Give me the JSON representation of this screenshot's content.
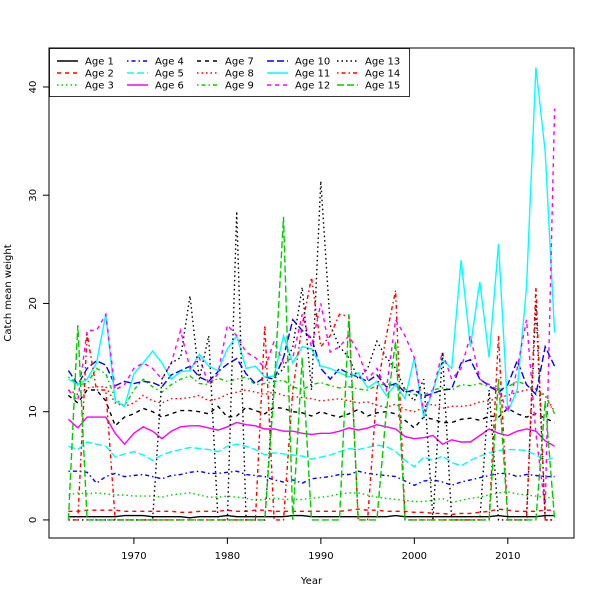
{
  "chart_data": {
    "type": "line",
    "title": "",
    "xlabel": "Year",
    "ylabel": "Catch mean weight",
    "xlim": [
      1960.92,
      2017.08
    ],
    "ylim": [
      -1.67,
      43.6
    ],
    "x_ticks": [
      1970,
      1980,
      1990,
      2000,
      2010
    ],
    "x_tick_labels": [
      "1970",
      "1980",
      "1990",
      "2000",
      "2010"
    ],
    "y_ticks": [
      0,
      10,
      20,
      30,
      40
    ],
    "y_tick_labels": [
      "0",
      "10",
      "20",
      "30",
      "40"
    ],
    "grid": false,
    "legend_position": "top-left",
    "x_start": 1963,
    "series": [
      {
        "name": "Age 1",
        "color": "#000000",
        "linestyle": "solid",
        "values": [
          0.3,
          0.3,
          0.3,
          0.3,
          0.3,
          0.3,
          0.4,
          0.4,
          0.4,
          0.3,
          0.3,
          0.3,
          0.3,
          0.2,
          0.3,
          0.3,
          0.3,
          0.4,
          0.3,
          0.3,
          0.3,
          0.3,
          0.3,
          0.3,
          0.4,
          0.4,
          0.3,
          0.3,
          0.3,
          0.3,
          0.3,
          0.3,
          0.3,
          0.3,
          0.3,
          0.4,
          0.3,
          0.3,
          0.3,
          0.3,
          0.3,
          0.3,
          0.3,
          0.3,
          0.3,
          0.3,
          0.4,
          0.3,
          0.3,
          0.3,
          0.3,
          0.4,
          0.4
        ]
      },
      {
        "name": "Age 2",
        "color": "#FF0000",
        "linestyle": "dashed",
        "values": [
          0.8,
          0.8,
          0.9,
          0.9,
          0.9,
          0.9,
          0.8,
          0.8,
          0.8,
          0.8,
          0.8,
          0.8,
          0.7,
          0.7,
          0.8,
          0.8,
          0.8,
          0.9,
          0.8,
          0.8,
          0.9,
          0.9,
          0.8,
          0.8,
          0.8,
          0.8,
          0.8,
          0.8,
          0.8,
          0.8,
          0.9,
          1.0,
          0.9,
          0.9,
          0.8,
          0.8,
          0.8,
          0.7,
          0.7,
          0.6,
          0.6,
          0.5,
          0.6,
          0.6,
          0.7,
          0.8,
          1.0,
          0.9,
          0.8,
          0.8,
          0.8,
          0.9,
          0.9
        ]
      },
      {
        "name": "Age 3",
        "color": "#00CD00",
        "linestyle": "dotted",
        "values": [
          2.3,
          2.5,
          2.4,
          2.5,
          2.4,
          2.3,
          2.3,
          2.2,
          2.2,
          2.2,
          2.1,
          2.3,
          2.4,
          2.5,
          2.3,
          2.1,
          2.1,
          2.2,
          2.1,
          2.0,
          1.8,
          1.9,
          2.0,
          1.9,
          1.9,
          1.9,
          2.0,
          2.1,
          2.2,
          2.4,
          2.5,
          2.5,
          2.3,
          2.1,
          2.0,
          1.9,
          1.8,
          1.7,
          1.7,
          1.8,
          2.0,
          1.6,
          1.8,
          2.0,
          2.1,
          2.3,
          2.5,
          2.6,
          2.4,
          2.3,
          2.2,
          2.1,
          2.0
        ]
      },
      {
        "name": "Age 4",
        "color": "#0000FF",
        "linestyle": "dotdash",
        "values": [
          4.5,
          4.5,
          4.4,
          3.4,
          4.0,
          4.3,
          4.0,
          4.1,
          4.2,
          4.0,
          3.8,
          4.1,
          4.2,
          4.4,
          4.5,
          4.3,
          4.3,
          4.4,
          4.5,
          4.2,
          4.1,
          4.0,
          3.7,
          3.5,
          3.7,
          3.4,
          3.8,
          3.9,
          4.0,
          4.2,
          4.2,
          4.5,
          4.3,
          4.2,
          4.1,
          4.0,
          3.6,
          3.2,
          3.6,
          3.7,
          3.5,
          3.2,
          3.5,
          3.7,
          3.9,
          4.1,
          4.3,
          4.3,
          4.0,
          4.2,
          4.1,
          4.0,
          4.0
        ]
      },
      {
        "name": "Age 5",
        "color": "#00FFFF",
        "linestyle": "longdash",
        "values": [
          6.8,
          6.5,
          7.2,
          7.0,
          6.8,
          5.8,
          6.1,
          6.3,
          6.0,
          5.5,
          6.0,
          6.3,
          6.5,
          6.7,
          6.6,
          6.5,
          6.3,
          6.8,
          7.0,
          6.8,
          6.5,
          6.0,
          6.2,
          6.1,
          6.0,
          5.9,
          5.6,
          5.8,
          6.0,
          6.3,
          6.6,
          6.5,
          6.7,
          6.9,
          6.8,
          6.3,
          5.5,
          4.9,
          5.8,
          5.5,
          5.9,
          5.3,
          5.0,
          5.5,
          5.9,
          6.2,
          6.4,
          6.5,
          6.5,
          6.4,
          6.0,
          5.5,
          5.8
        ]
      },
      {
        "name": "Age 6",
        "color": "#FF00FF",
        "linestyle": "solid",
        "values": [
          9.3,
          8.5,
          9.5,
          9.5,
          9.5,
          8.0,
          7.0,
          8.0,
          8.6,
          8.2,
          7.5,
          8.2,
          8.6,
          8.7,
          8.7,
          8.5,
          8.3,
          8.6,
          9.0,
          8.8,
          8.7,
          8.4,
          8.4,
          8.2,
          8.2,
          8.0,
          7.9,
          8.0,
          8.0,
          8.2,
          8.5,
          8.3,
          8.5,
          8.8,
          8.6,
          8.4,
          7.7,
          7.5,
          7.6,
          7.8,
          7.0,
          7.4,
          7.2,
          7.2,
          7.8,
          8.4,
          8.0,
          7.8,
          8.2,
          8.4,
          8.2,
          7.3,
          6.8
        ]
      },
      {
        "name": "Age 7",
        "color": "#000000",
        "linestyle": "dashed",
        "values": [
          11.5,
          10.8,
          12.0,
          12.0,
          11.0,
          8.7,
          9.5,
          9.8,
          10.3,
          10.0,
          9.5,
          9.8,
          10.1,
          10.1,
          10.0,
          9.8,
          10.5,
          9.5,
          9.6,
          10.4,
          10.1,
          9.8,
          10.4,
          10.3,
          10.0,
          9.9,
          9.6,
          10.0,
          9.7,
          9.5,
          9.8,
          10.2,
          9.6,
          9.9,
          10.0,
          9.8,
          9.2,
          8.5,
          9.5,
          9.3,
          9.0,
          9.0,
          9.3,
          9.4,
          9.2,
          9.6,
          9.5,
          10.3,
          9.8,
          9.5,
          9.8,
          9.4,
          9.0
        ]
      },
      {
        "name": "Age 8",
        "color": "#FF0000",
        "linestyle": "dotted",
        "values": [
          12.0,
          11.6,
          12.2,
          12.3,
          12.3,
          10.8,
          10.5,
          10.8,
          11.5,
          11.0,
          10.8,
          11.2,
          11.2,
          11.3,
          11.5,
          11.0,
          11.2,
          11.6,
          11.8,
          12.0,
          11.8,
          11.6,
          11.8,
          11.5,
          11.4,
          11.3,
          11.2,
          11.0,
          11.1,
          11.2,
          11.0,
          10.8,
          10.9,
          10.6,
          10.4,
          10.7,
          10.2,
          10.0,
          10.4,
          10.7,
          10.3,
          10.5,
          10.5,
          10.6,
          10.9,
          11.0,
          11.3,
          11.5,
          11.8,
          12.0,
          12.1,
          11.5,
          10.0
        ]
      },
      {
        "name": "Age 9",
        "color": "#00CD00",
        "linestyle": "dotdash",
        "values": [
          13.2,
          12.5,
          12.6,
          14.0,
          13.5,
          11.2,
          10.5,
          12.0,
          13.0,
          12.3,
          11.8,
          12.5,
          13.0,
          13.3,
          12.6,
          12.5,
          13.1,
          12.8,
          13.0,
          13.2,
          12.5,
          12.6,
          12.8,
          12.9,
          12.3,
          12.0,
          12.5,
          12.7,
          12.4,
          12.2,
          12.3,
          12.1,
          12.0,
          12.4,
          12.6,
          12.4,
          12.1,
          11.6,
          11.5,
          12.0,
          12.2,
          12.0,
          12.5,
          12.4,
          12.6,
          12.3,
          11.8,
          12.3,
          12.8,
          12.5,
          11.8,
          11.5,
          9.8
        ]
      },
      {
        "name": "Age 10",
        "color": "#0000FF",
        "linestyle": "longdash",
        "values": [
          13.8,
          12.5,
          14.0,
          14.7,
          14.3,
          12.4,
          12.8,
          12.6,
          12.8,
          12.7,
          12.3,
          13.4,
          13.8,
          14.2,
          13.2,
          12.8,
          13.7,
          14.4,
          14.9,
          13.5,
          12.6,
          13.2,
          13.0,
          15.0,
          18.5,
          17.5,
          16.8,
          14.0,
          13.0,
          14.0,
          13.5,
          13.2,
          12.8,
          13.4,
          12.3,
          12.6,
          11.8,
          12.0,
          11.4,
          11.7,
          12.0,
          12.1,
          14.5,
          14.8,
          13.0,
          12.4,
          11.8,
          12.5,
          14.7,
          12.5,
          11.6,
          16.0,
          14.2
        ]
      },
      {
        "name": "Age 11",
        "color": "#00FFFF",
        "linestyle": "solid",
        "values": [
          13.0,
          12.5,
          13.0,
          14.5,
          19.0,
          11.0,
          10.5,
          13.5,
          14.5,
          15.6,
          14.5,
          13.0,
          13.7,
          13.8,
          15.3,
          14.2,
          13.8,
          15.8,
          17.0,
          14.0,
          14.2,
          13.2,
          13.3,
          17.0,
          14.5,
          16.0,
          15.8,
          14.2,
          14.0,
          13.6,
          13.2,
          13.6,
          12.2,
          12.8,
          11.5,
          12.5,
          11.2,
          15.0,
          9.5,
          12.0,
          14.8,
          14.0,
          24.0,
          16.0,
          22.0,
          15.0,
          25.5,
          10.0,
          12.0,
          21.5,
          41.8,
          34.0,
          17.3
        ]
      },
      {
        "name": "Age 12",
        "color": "#FF00FF",
        "linestyle": "dashed",
        "values": [
          12.0,
          11.0,
          17.5,
          17.5,
          19.0,
          12.0,
          12.5,
          14.0,
          14.5,
          14.0,
          13.0,
          14.5,
          17.5,
          14.0,
          15.0,
          12.5,
          13.5,
          18.0,
          17.0,
          15.5,
          15.0,
          14.0,
          16.5,
          14.5,
          15.0,
          19.0,
          16.0,
          20.0,
          15.5,
          16.0,
          17.0,
          15.5,
          13.0,
          14.0,
          12.0,
          18.5,
          17.0,
          15.0,
          10.0,
          12.0,
          15.5,
          13.0,
          14.0,
          17.0,
          13.0,
          12.5,
          12.0,
          10.0,
          14.0,
          18.5,
          8.0,
          1.0,
          38.0
        ]
      },
      {
        "name": "Age 13",
        "color": "#000000",
        "linestyle": "dotted",
        "values": [
          0,
          0,
          0,
          0,
          0,
          0,
          0,
          0,
          0,
          0,
          13,
          14.5,
          15,
          20.7,
          13,
          17,
          0,
          0,
          28.5,
          0,
          0,
          0,
          13,
          14,
          16,
          21.5,
          12,
          31.3,
          18,
          16,
          15,
          13,
          14,
          16.5,
          15,
          14,
          12,
          11,
          13,
          0,
          15.5,
          0,
          0,
          0,
          0,
          12,
          0,
          0,
          0,
          0,
          20,
          0,
          0
        ]
      },
      {
        "name": "Age 14",
        "color": "#FF0000",
        "linestyle": "dotdash",
        "values": [
          0,
          0,
          17.2,
          12,
          12,
          0,
          0,
          0,
          0,
          0,
          0,
          0,
          0,
          0,
          0,
          0,
          0,
          0,
          0,
          0,
          0,
          18,
          0,
          0,
          12,
          18,
          22.4,
          16,
          17,
          19,
          18.8,
          0,
          0,
          12,
          17,
          21.2,
          0,
          0,
          0,
          0,
          0,
          0,
          0,
          0,
          0,
          0,
          17,
          0,
          0,
          0,
          21.5,
          0,
          0
        ]
      },
      {
        "name": "Age 15",
        "color": "#00CD00",
        "linestyle": "longdash",
        "values": [
          0,
          18,
          0,
          0,
          0,
          0,
          0,
          0,
          0,
          0,
          0,
          0,
          0,
          0,
          0,
          0,
          0,
          0,
          0,
          0,
          0,
          0,
          12,
          28,
          0,
          15,
          0,
          0,
          0,
          0,
          19,
          0,
          0,
          0,
          10,
          16.5,
          0,
          0,
          0,
          0,
          0,
          0,
          0,
          0,
          0,
          0,
          13,
          0,
          0,
          0,
          0,
          11,
          0
        ]
      }
    ]
  }
}
